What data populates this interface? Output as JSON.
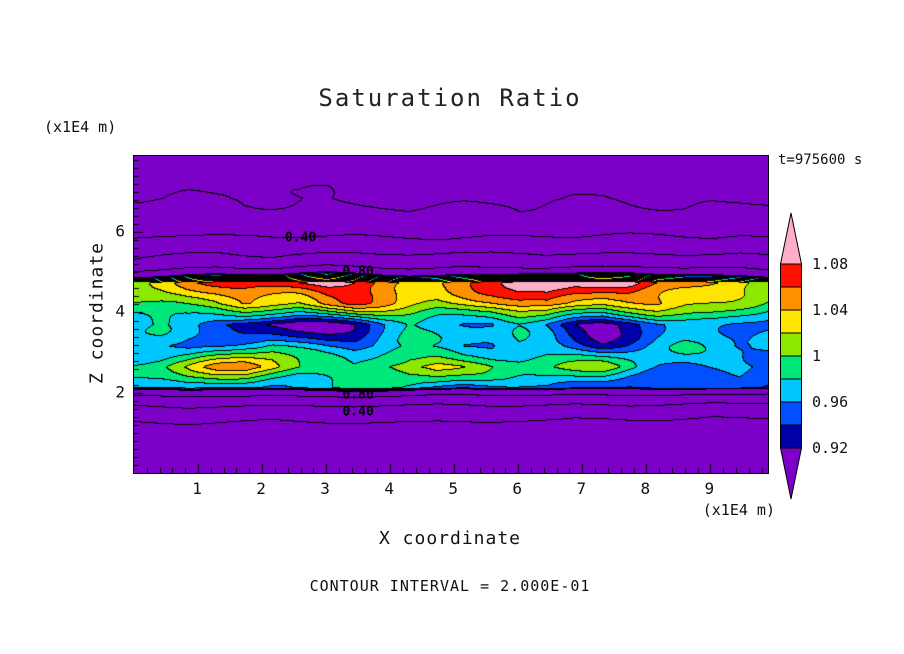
{
  "title": "Saturation Ratio",
  "annotations": {
    "time_label": "t=975600 s",
    "contour_interval_label": "CONTOUR INTERVAL = 2.000E-01",
    "y_axis_unit": "(x1E4 m)",
    "x_axis_unit": "(x1E4 m)"
  },
  "axes": {
    "x_label": "X coordinate",
    "y_label": "Z coordinate"
  },
  "chart_data": {
    "type": "heatmap",
    "title": "Saturation Ratio",
    "xlabel": "X coordinate",
    "ylabel": "Z coordinate",
    "x_unit": "(x1E4 m)",
    "y_unit": "(x1E4 m)",
    "time_label": "t=975600 s",
    "contour_interval": 0.2,
    "contour_interval_label": "CONTOUR INTERVAL = 2.000E-01",
    "xlim": [
      0,
      9.9
    ],
    "zlim": [
      0,
      7.9
    ],
    "x_ticks": [
      1,
      2,
      3,
      4,
      5,
      6,
      7,
      8,
      9
    ],
    "z_ticks": [
      2,
      4,
      6
    ],
    "minor_tick_step": 0.2,
    "legend_position": "right",
    "grid_lines": false,
    "fill_levels": [
      0.92,
      0.94,
      0.96,
      0.98,
      1.0,
      1.02,
      1.04,
      1.06,
      1.08
    ],
    "fill_colors": [
      "#7D00C8",
      "#0000A8",
      "#0050FF",
      "#00C8FF",
      "#00E87C",
      "#8CE800",
      "#FFE400",
      "#FF9000",
      "#FF1000",
      "#FFAEC8"
    ],
    "line_levels": [
      0.2,
      0.4,
      0.6,
      0.8,
      1.0
    ],
    "colorbar_labels": [
      "0.92",
      "0.96",
      "1",
      "1.04",
      "1.08"
    ],
    "contour_labels": [
      {
        "text": "0.40",
        "x": 2.6,
        "z": 5.85
      },
      {
        "text": "0.80",
        "x": 3.5,
        "z": 5.0
      },
      {
        "text": "0.80",
        "x": 3.5,
        "z": 1.95
      },
      {
        "text": "0.40",
        "x": 3.5,
        "z": 1.52
      }
    ],
    "grid": {
      "cols": 24,
      "rows": 16,
      "z_top": 7.9,
      "z_bottom": 0,
      "values": [
        [
          0.16,
          0.16,
          0.17,
          0.16,
          0.16,
          0.17,
          0.16,
          0.16,
          0.17,
          0.16,
          0.16,
          0.17,
          0.16,
          0.17,
          0.16,
          0.16,
          0.17,
          0.16,
          0.16,
          0.17,
          0.16,
          0.17,
          0.16,
          0.16
        ],
        [
          0.17,
          0.18,
          0.18,
          0.17,
          0.18,
          0.18,
          0.17,
          0.18,
          0.18,
          0.17,
          0.18,
          0.18,
          0.17,
          0.18,
          0.17,
          0.18,
          0.18,
          0.17,
          0.18,
          0.18,
          0.17,
          0.18,
          0.18,
          0.17
        ],
        [
          0.185,
          0.19,
          0.195,
          0.19,
          0.185,
          0.19,
          0.195,
          0.2,
          0.195,
          0.19,
          0.185,
          0.19,
          0.195,
          0.19,
          0.185,
          0.19,
          0.195,
          0.2,
          0.195,
          0.19,
          0.19,
          0.195,
          0.19,
          0.185
        ],
        [
          0.22,
          0.23,
          0.24,
          0.23,
          0.22,
          0.23,
          0.24,
          0.25,
          0.24,
          0.23,
          0.22,
          0.23,
          0.24,
          0.23,
          0.22,
          0.23,
          0.24,
          0.25,
          0.24,
          0.23,
          0.22,
          0.23,
          0.24,
          0.23
        ],
        [
          0.41,
          0.43,
          0.45,
          0.46,
          0.44,
          0.42,
          0.43,
          0.45,
          0.47,
          0.45,
          0.43,
          0.42,
          0.44,
          0.46,
          0.45,
          0.43,
          0.42,
          0.44,
          0.46,
          0.45,
          0.43,
          0.42,
          0.44,
          0.43
        ],
        [
          0.62,
          0.66,
          0.7,
          0.72,
          0.68,
          0.65,
          0.7,
          0.74,
          0.72,
          0.68,
          0.66,
          0.69,
          0.73,
          0.71,
          0.68,
          0.66,
          0.7,
          0.72,
          0.7,
          0.67,
          0.65,
          0.68,
          0.7,
          0.66
        ],
        [
          1.02,
          1.03,
          1.05,
          1.06,
          1.07,
          1.08,
          1.09,
          1.1,
          1.09,
          1.07,
          1.05,
          1.04,
          1.05,
          1.07,
          1.09,
          1.09,
          1.07,
          1.08,
          1.09,
          1.06,
          1.05,
          1.04,
          1.03,
          1.02
        ],
        [
          1.0,
          1.01,
          1.02,
          1.03,
          1.05,
          1.04,
          1.03,
          1.05,
          1.06,
          1.04,
          1.02,
          1.01,
          1.02,
          1.03,
          1.05,
          1.06,
          1.04,
          1.02,
          1.03,
          1.04,
          1.02,
          1.01,
          1.0,
          0.99
        ],
        [
          0.97,
          0.98,
          0.97,
          0.95,
          0.93,
          0.91,
          0.9,
          0.91,
          0.93,
          0.96,
          0.98,
          0.97,
          0.96,
          0.95,
          0.96,
          0.94,
          0.91,
          0.9,
          0.92,
          0.95,
          0.97,
          0.98,
          0.97,
          0.96
        ],
        [
          0.98,
          0.97,
          0.96,
          0.97,
          0.98,
          0.99,
          0.97,
          0.95,
          0.94,
          0.96,
          0.97,
          0.96,
          0.95,
          0.96,
          0.98,
          0.97,
          0.95,
          0.93,
          0.95,
          0.97,
          0.98,
          0.97,
          0.96,
          0.97
        ],
        [
          0.99,
          1.0,
          1.02,
          1.04,
          1.05,
          1.03,
          1.0,
          0.99,
          0.98,
          1.0,
          1.02,
          1.03,
          1.01,
          0.99,
          0.98,
          0.99,
          1.0,
          1.01,
          0.99,
          0.97,
          0.96,
          0.97,
          0.98,
          0.97
        ],
        [
          0.96,
          0.97,
          0.98,
          0.97,
          0.96,
          0.95,
          0.96,
          0.97,
          0.98,
          0.97,
          0.96,
          0.95,
          0.94,
          0.95,
          0.96,
          0.97,
          0.96,
          0.95,
          0.94,
          0.95,
          0.96,
          0.95,
          0.94,
          0.93
        ],
        [
          0.52,
          0.55,
          0.58,
          0.56,
          0.53,
          0.5,
          0.52,
          0.55,
          0.57,
          0.54,
          0.51,
          0.5,
          0.53,
          0.56,
          0.54,
          0.51,
          0.49,
          0.52,
          0.55,
          0.53,
          0.5,
          0.48,
          0.5,
          0.49
        ],
        [
          0.31,
          0.32,
          0.33,
          0.32,
          0.31,
          0.3,
          0.31,
          0.32,
          0.33,
          0.32,
          0.31,
          0.3,
          0.31,
          0.32,
          0.31,
          0.3,
          0.29,
          0.3,
          0.31,
          0.32,
          0.31,
          0.3,
          0.29,
          0.3
        ],
        [
          0.25,
          0.26,
          0.25,
          0.26,
          0.25,
          0.26,
          0.25,
          0.26,
          0.25,
          0.26,
          0.25,
          0.26,
          0.25,
          0.26,
          0.25,
          0.26,
          0.25,
          0.26,
          0.25,
          0.26,
          0.25,
          0.26,
          0.25,
          0.26
        ],
        [
          0.22,
          0.22,
          0.23,
          0.22,
          0.22,
          0.23,
          0.22,
          0.22,
          0.23,
          0.22,
          0.22,
          0.23,
          0.22,
          0.22,
          0.23,
          0.22,
          0.22,
          0.23,
          0.22,
          0.22,
          0.23,
          0.22,
          0.22,
          0.23
        ]
      ]
    }
  }
}
